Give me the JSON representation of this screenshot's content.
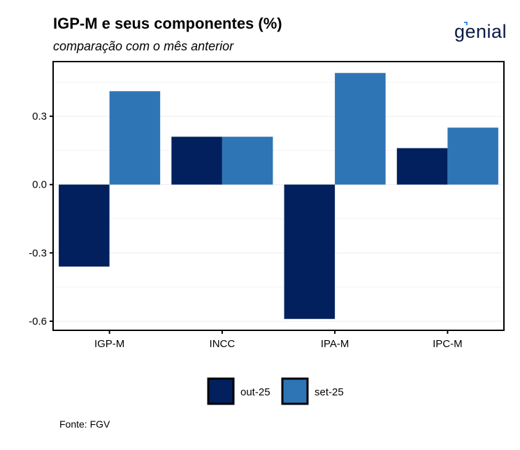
{
  "logo": {
    "text": "genial"
  },
  "footer": {
    "source": "Fonte: FGV"
  },
  "chart_data": {
    "type": "bar",
    "title": "IGP-M e seus componentes (%)",
    "subtitle": "comparação com o mês anterior",
    "xlabel": "",
    "ylabel": "",
    "categories": [
      "IGP-M",
      "INCC",
      "IPA-M",
      "IPC-M"
    ],
    "series": [
      {
        "name": "out-25",
        "color": "#02205e",
        "values": [
          -0.36,
          0.21,
          -0.59,
          0.16
        ]
      },
      {
        "name": "set-25",
        "color": "#2e75b6",
        "values": [
          0.41,
          0.21,
          0.49,
          0.25
        ]
      }
    ],
    "ylim": [
      -0.64,
      0.54
    ],
    "yticks": [
      -0.6,
      -0.3,
      0.0,
      0.3
    ],
    "ytick_labels": [
      "-0.6",
      "-0.3",
      "0.0",
      "0.3"
    ],
    "grid": true,
    "legend": "bottom"
  }
}
